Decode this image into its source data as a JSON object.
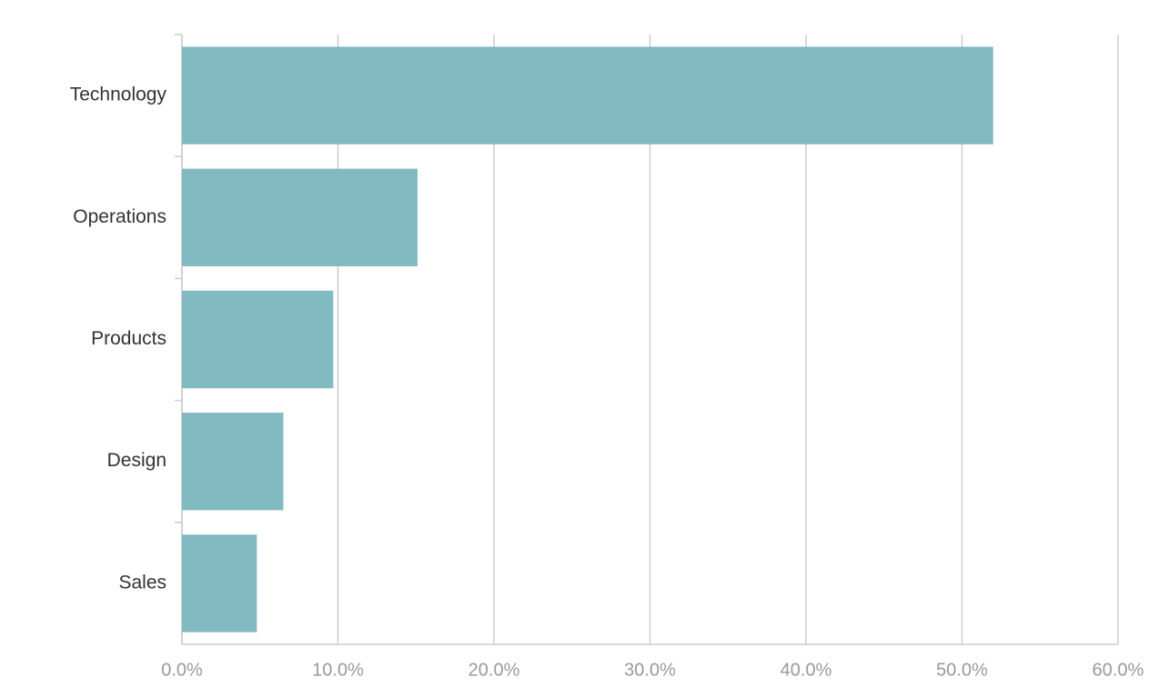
{
  "chart_data": {
    "type": "hbar",
    "categories": [
      "Technology",
      "Operations",
      "Products",
      "Design",
      "Sales"
    ],
    "values": [
      52.0,
      15.1,
      9.7,
      6.5,
      4.8
    ],
    "color": "#82bac2",
    "xlim": [
      0,
      60
    ],
    "xticks": [
      {
        "value": 0,
        "label": "0.0%"
      },
      {
        "value": 10,
        "label": "10.0%"
      },
      {
        "value": 20,
        "label": "20.0%"
      },
      {
        "value": 30,
        "label": "30.0%"
      },
      {
        "value": 40,
        "label": "40.0%"
      },
      {
        "value": 50,
        "label": "50.0%"
      },
      {
        "value": 60,
        "label": "60.0%"
      }
    ],
    "grid": true
  }
}
